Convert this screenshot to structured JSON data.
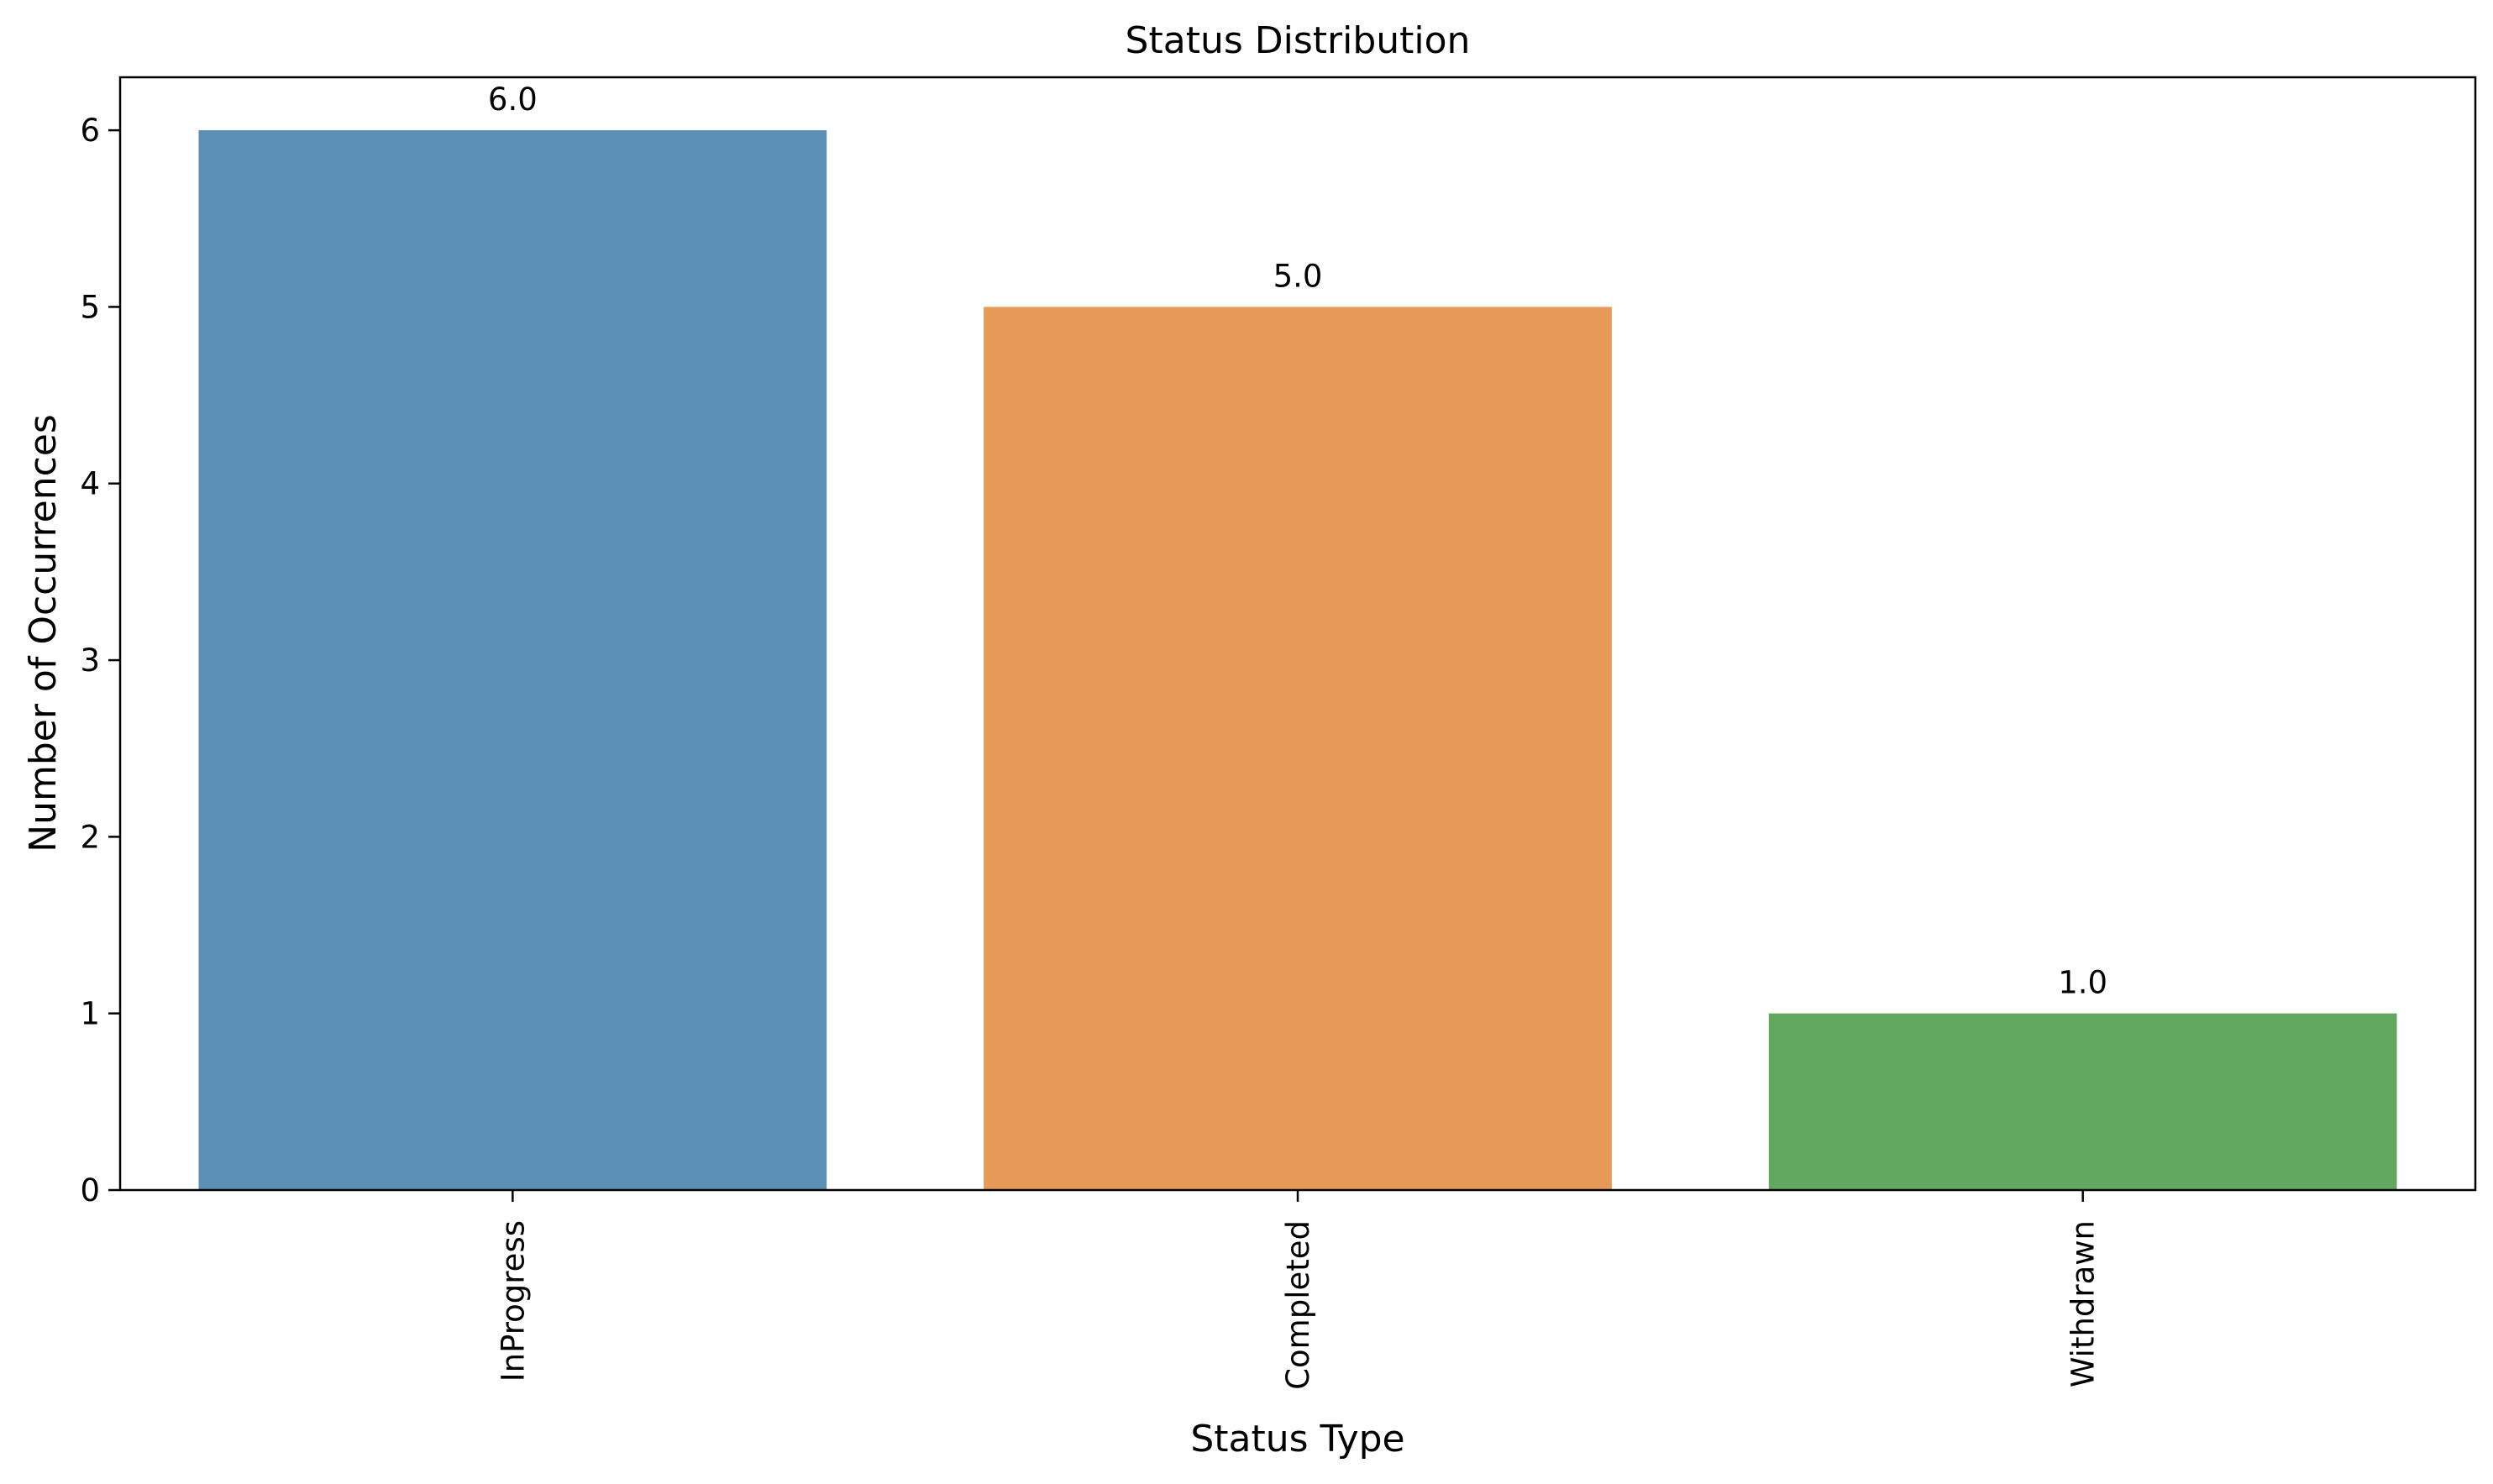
{
  "chart_data": {
    "type": "bar",
    "title": "Status Distribution",
    "xlabel": "Status Type",
    "ylabel": "Number of Occurrences",
    "categories": [
      "InProgress",
      "Completed",
      "Withdrawn"
    ],
    "values": [
      6,
      5,
      1
    ],
    "value_labels": [
      "6.0",
      "5.0",
      "1.0"
    ],
    "colors": [
      "#5b8fb4",
      "#e79a57",
      "#62a95f"
    ],
    "ylim": [
      0,
      6.3
    ],
    "yticks": [
      0,
      1,
      2,
      3,
      4,
      5,
      6
    ],
    "grid": false,
    "legend": "none"
  }
}
